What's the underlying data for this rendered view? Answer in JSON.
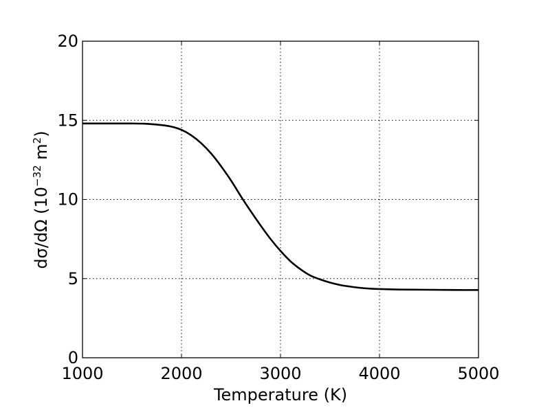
{
  "chart_data": {
    "type": "line",
    "title": "",
    "xlabel": "Temperature (K)",
    "ylabel": {
      "pre": "dσ/dΩ (10",
      "exp": "−32",
      "mid": " m",
      "exp2": "2",
      "post": ")"
    },
    "xlim": [
      1000,
      5000
    ],
    "ylim": [
      0,
      20
    ],
    "xticks": [
      1000,
      2000,
      3000,
      4000,
      5000
    ],
    "yticks": [
      0,
      5,
      10,
      15,
      20
    ],
    "xtick_labels": [
      "1000",
      "2000",
      "3000",
      "4000",
      "5000"
    ],
    "ytick_labels": [
      "0",
      "5",
      "10",
      "15",
      "20"
    ],
    "grid": true,
    "series": [
      {
        "color": "#000000",
        "x": [
          1000,
          1250,
          1500,
          1650,
          1800,
          1900,
          2000,
          2100,
          2200,
          2300,
          2400,
          2500,
          2600,
          2700,
          2800,
          2900,
          3000,
          3100,
          3200,
          3300,
          3400,
          3500,
          3600,
          3700,
          3800,
          3900,
          4000,
          4200,
          4400,
          4600,
          4800,
          5000
        ],
        "y": [
          14.8,
          14.8,
          14.8,
          14.78,
          14.7,
          14.6,
          14.4,
          14.05,
          13.55,
          12.9,
          12.1,
          11.2,
          10.2,
          9.25,
          8.35,
          7.5,
          6.75,
          6.1,
          5.6,
          5.2,
          4.95,
          4.75,
          4.6,
          4.5,
          4.42,
          4.37,
          4.34,
          4.31,
          4.3,
          4.29,
          4.28,
          4.28
        ]
      }
    ]
  }
}
